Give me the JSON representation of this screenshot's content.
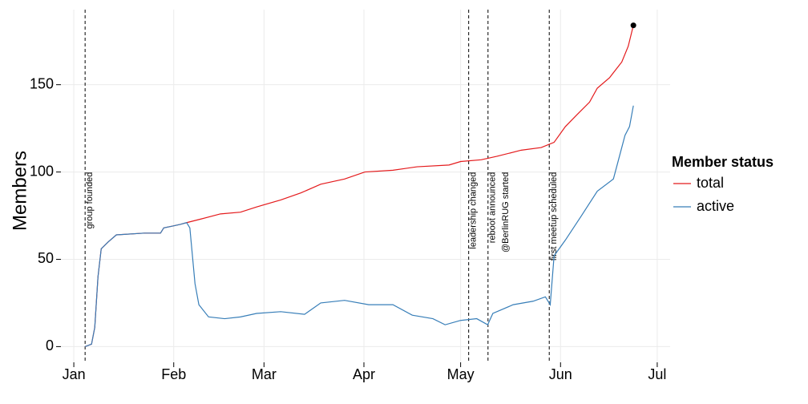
{
  "chart_data": {
    "type": "line",
    "y_label": "Members",
    "xlim": [
      -4,
      185
    ],
    "ylim": [
      -9,
      193
    ],
    "xticks": [
      {
        "value": 0,
        "label": "Jan"
      },
      {
        "value": 31,
        "label": "Feb"
      },
      {
        "value": 59,
        "label": "Mar"
      },
      {
        "value": 90,
        "label": "Apr"
      },
      {
        "value": 120,
        "label": "May"
      },
      {
        "value": 151,
        "label": "Jun"
      },
      {
        "value": 181,
        "label": "Jul"
      }
    ],
    "yticks": [
      0,
      50,
      100,
      150
    ],
    "grid": true,
    "legend_title": "Member status",
    "legend_position": "right",
    "series": [
      {
        "name": "total",
        "color": "#e41a1c",
        "x": [
          3.5,
          5.5,
          6.5,
          7.5,
          8.5,
          10.7,
          13.2,
          21.9,
          26.9,
          27.9,
          30.6,
          33,
          35,
          39.3,
          45.5,
          51.7,
          56.7,
          64.2,
          70.4,
          76.6,
          84,
          90.3,
          99,
          106.5,
          116.4,
          120,
          126.4,
          131.3,
          138.8,
          145,
          149,
          152.5,
          156.2,
          160,
          162.4,
          166.2,
          170,
          172,
          173.6
        ],
        "values": [
          0,
          1.4,
          11,
          40,
          56,
          60,
          64,
          65,
          65,
          68,
          69,
          70,
          71,
          73,
          76,
          77,
          80,
          84,
          88,
          93,
          96,
          100,
          101,
          103,
          104,
          106,
          107,
          109,
          112.5,
          114,
          117,
          126,
          133,
          140,
          148,
          154,
          163,
          172,
          184
        ]
      },
      {
        "name": "active",
        "color": "#377eb8",
        "x": [
          3.5,
          5.5,
          6.5,
          7.5,
          8.5,
          10.7,
          13.2,
          21.9,
          26.9,
          27.9,
          30.6,
          33,
          35,
          36,
          37.6,
          38.8,
          41.8,
          46.8,
          51.7,
          56.7,
          64.2,
          71.6,
          76.6,
          84,
          91.5,
          99,
          105,
          111.4,
          115.2,
          120,
          125,
          128.4,
          130,
          136.3,
          142.5,
          146.3,
          147.8,
          149,
          152.5,
          157.5,
          162.4,
          167.4,
          168.7,
          171,
          172.4,
          173.6
        ],
        "values": [
          0,
          1.4,
          11,
          40,
          56,
          60,
          64,
          65,
          65,
          68,
          69,
          70,
          71,
          68,
          36,
          24,
          17,
          16,
          17,
          19,
          20,
          18.5,
          25,
          26.5,
          24,
          24,
          18,
          16,
          12.5,
          15,
          16,
          12.5,
          19,
          24,
          26,
          28.5,
          24,
          52,
          61,
          75,
          89,
          96,
          105,
          121,
          126,
          138
        ]
      }
    ],
    "endpoint": {
      "x": 173.6,
      "value": 184,
      "color": "#000000"
    },
    "vlines": [
      3.5,
      122.5,
      128.5,
      147.5
    ],
    "annotations": [
      {
        "x": 3.5,
        "text": "group founded"
      },
      {
        "x": 122.5,
        "text": "leadership changed"
      },
      {
        "x": 128.5,
        "text": "reboot announced"
      },
      {
        "x": 132.5,
        "text": "@BerlinRUG started"
      },
      {
        "x": 147.5,
        "text": "first meetup scheduled"
      }
    ]
  }
}
